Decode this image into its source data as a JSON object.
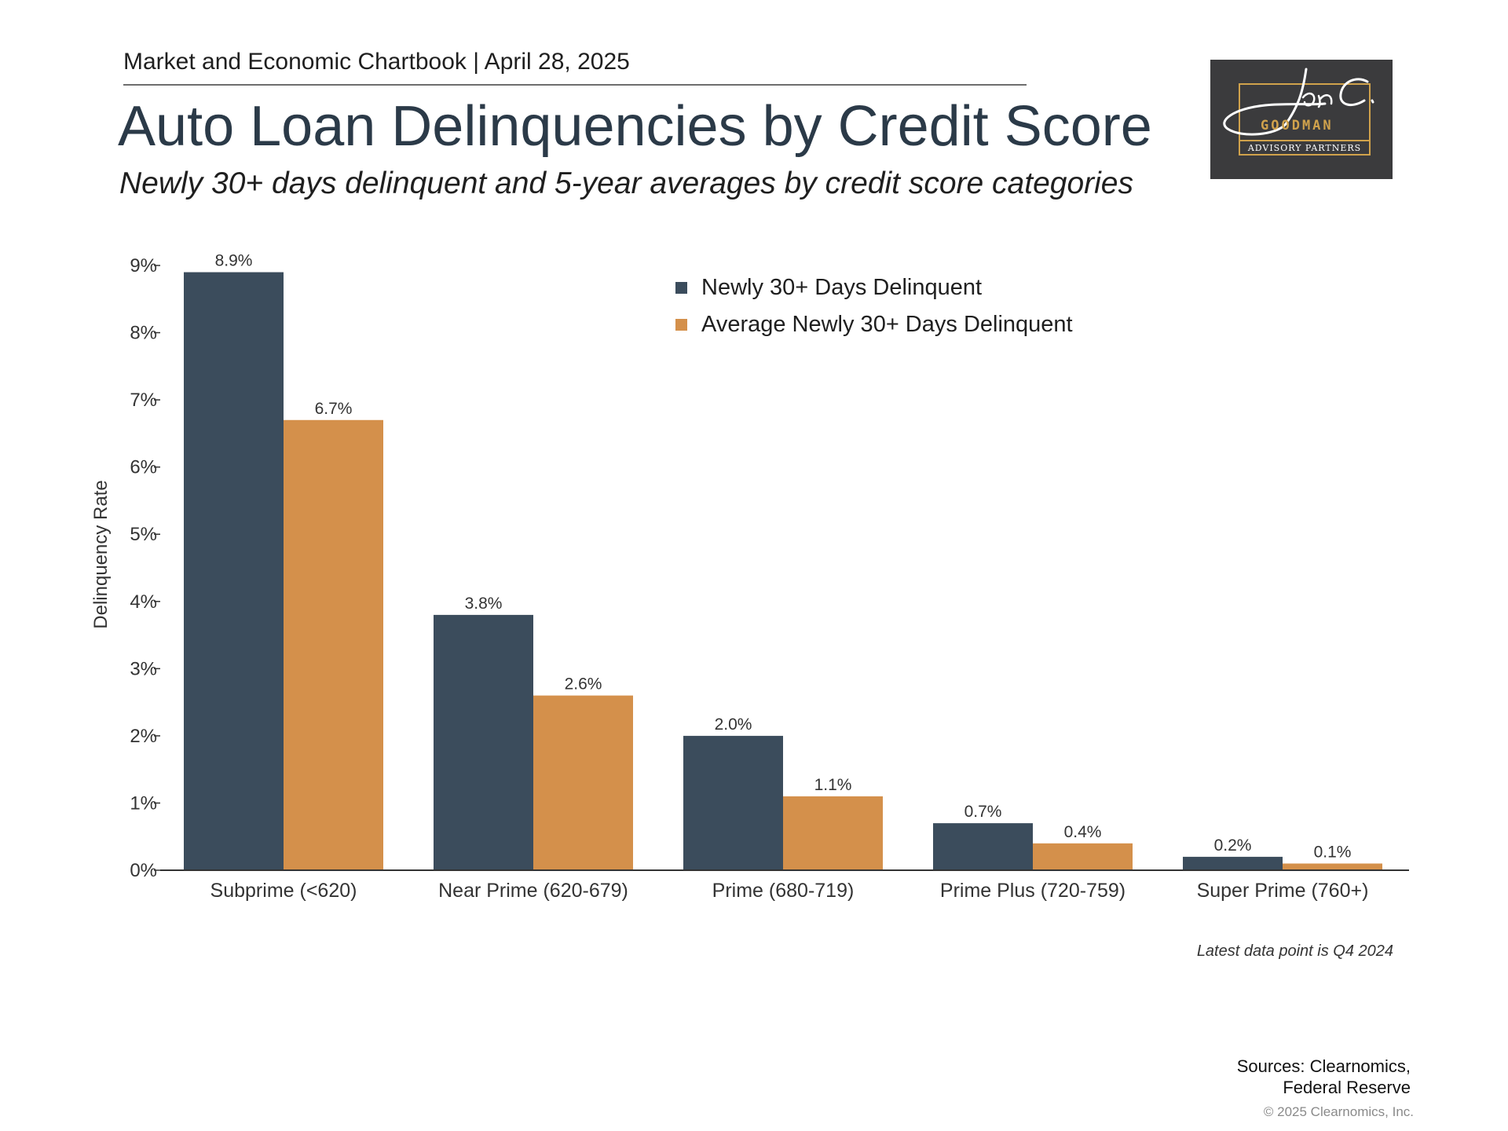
{
  "header": {
    "chartbook": "Market and Economic Chartbook | April 28, 2025",
    "title": "Auto Loan Delinquencies by Credit Score",
    "subtitle": "Newly 30+ days delinquent and 5-year averages by credit score categories"
  },
  "logo": {
    "brand": "GOODMAN",
    "tagline": "ADVISORY PARTNERS"
  },
  "chart_data": {
    "type": "bar",
    "categories": [
      "Subprime (<620)",
      "Near Prime (620-679)",
      "Prime (680-719)",
      "Prime Plus (720-759)",
      "Super Prime (760+)"
    ],
    "series": [
      {
        "name": "Newly 30+ Days Delinquent",
        "values": [
          8.9,
          3.8,
          2.0,
          0.7,
          0.2
        ],
        "labels": [
          "8.9%",
          "3.8%",
          "2.0%",
          "0.7%",
          "0.2%"
        ],
        "color": "#3b4c5c"
      },
      {
        "name": "Average Newly 30+ Days Delinquent",
        "values": [
          6.7,
          2.6,
          1.1,
          0.4,
          0.1
        ],
        "labels": [
          "6.7%",
          "2.6%",
          "1.1%",
          "0.4%",
          "0.1%"
        ],
        "color": "#d4904b"
      }
    ],
    "ylabel": "Delinquency Rate",
    "xlabel": "",
    "ylim": [
      0,
      9
    ],
    "yticks": [
      "0%",
      "1%",
      "2%",
      "3%",
      "4%",
      "5%",
      "6%",
      "7%",
      "8%",
      "9%"
    ],
    "legend_position": "top-right",
    "grid": false
  },
  "footnote": "Latest data point is Q4 2024",
  "sources": {
    "line1": "Sources: Clearnomics,",
    "line2": "Federal Reserve"
  },
  "copyright": "© 2025 Clearnomics, Inc."
}
